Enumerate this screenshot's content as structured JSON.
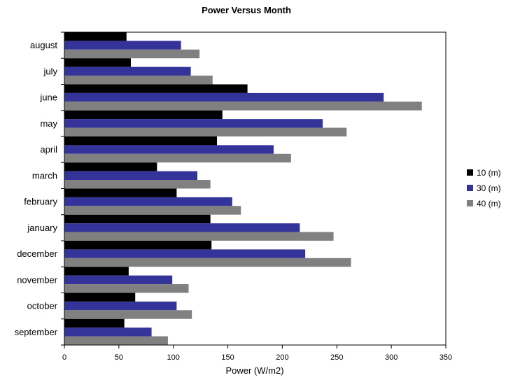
{
  "chart_data": {
    "type": "bar",
    "orientation": "horizontal",
    "title": "Power Versus Month",
    "xlabel": "Power (W/m2)",
    "ylabel": "",
    "xlim": [
      0,
      350
    ],
    "xticks": [
      0,
      50,
      100,
      150,
      200,
      250,
      300,
      350
    ],
    "grid": false,
    "legend_position": "right",
    "categories": [
      "august",
      "july",
      "june",
      "may",
      "april",
      "march",
      "february",
      "january",
      "december",
      "november",
      "october",
      "september"
    ],
    "series": [
      {
        "name": "10 (m)",
        "color": "#000000",
        "values": [
          57,
          61,
          168,
          145,
          140,
          85,
          103,
          134,
          135,
          59,
          65,
          55
        ]
      },
      {
        "name": "30 (m)",
        "color": "#333399",
        "values": [
          107,
          116,
          293,
          237,
          192,
          122,
          154,
          216,
          221,
          99,
          103,
          80
        ]
      },
      {
        "name": "40 (m)",
        "color": "#808080",
        "values": [
          124,
          136,
          328,
          259,
          208,
          134,
          162,
          247,
          263,
          114,
          117,
          95
        ]
      }
    ]
  }
}
